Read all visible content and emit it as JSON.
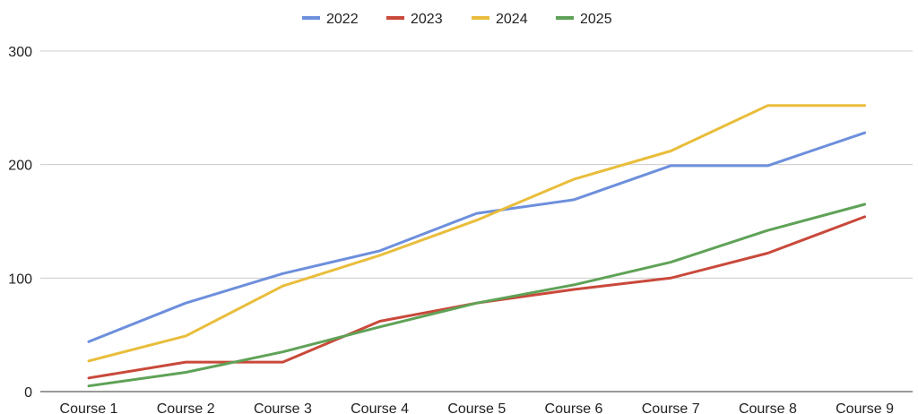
{
  "chart_data": {
    "type": "line",
    "title": "",
    "xlabel": "",
    "ylabel": "",
    "categories": [
      "Course 1",
      "Course 2",
      "Course 3",
      "Course 4",
      "Course 5",
      "Course 6",
      "Course 7",
      "Course 8",
      "Course 9"
    ],
    "ylim": [
      0,
      300
    ],
    "yticks": [
      0,
      100,
      200,
      300
    ],
    "grid": true,
    "legend_position": "top-center",
    "series": [
      {
        "name": "2022",
        "color": "#6d8fdc",
        "values": [
          44,
          78,
          104,
          124,
          157,
          169,
          199,
          199,
          228
        ]
      },
      {
        "name": "2023",
        "color": "#c9493b",
        "values": [
          12,
          26,
          26,
          62,
          78,
          90,
          100,
          122,
          154
        ]
      },
      {
        "name": "2024",
        "color": "#e9bd3b",
        "values": [
          27,
          49,
          93,
          120,
          151,
          187,
          212,
          252,
          252
        ]
      },
      {
        "name": "2025",
        "color": "#5fa257",
        "values": [
          5,
          17,
          35,
          57,
          78,
          94,
          114,
          142,
          165
        ]
      }
    ]
  }
}
